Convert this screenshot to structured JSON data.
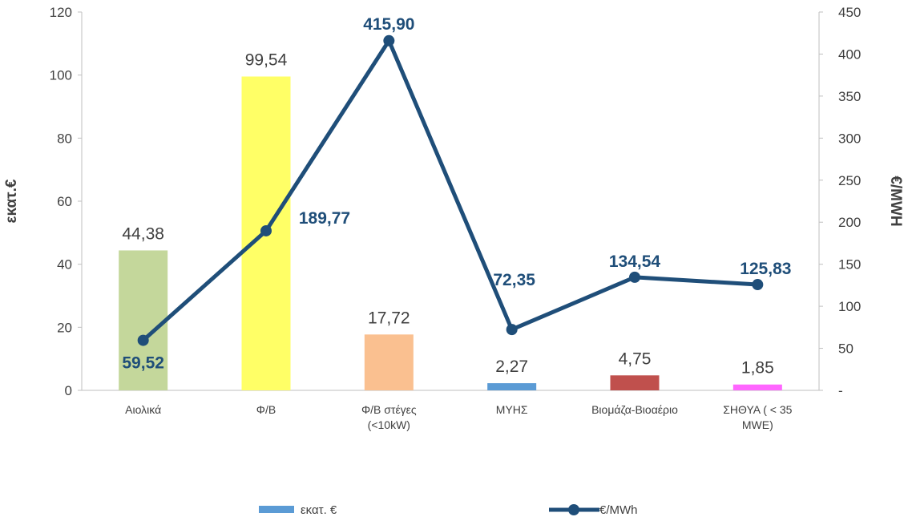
{
  "chart_data": {
    "type": "bar+line",
    "categories": [
      [
        "Αιολικά"
      ],
      [
        "Φ/Β"
      ],
      [
        "Φ/Β στέγες",
        "(<10kW)"
      ],
      [
        "ΜΥΗΣ"
      ],
      [
        "Βιομάζα-Βιοαέριο"
      ],
      [
        "ΣΗΘΥΑ ( < 35",
        "MWE)"
      ]
    ],
    "series": [
      {
        "name": "εκατ. €",
        "type": "bar",
        "axis": "left",
        "values": [
          44.38,
          99.54,
          17.72,
          2.27,
          4.75,
          1.85
        ],
        "labels": [
          "44,38",
          "99,54",
          "17,72",
          "2,27",
          "4,75",
          "1,85"
        ],
        "colors": [
          "#c4d79b",
          "#ffff66",
          "#fac090",
          "#5b9bd5",
          "#c0504d",
          "#ff66ff"
        ],
        "legend_color": "#5b9bd5"
      },
      {
        "name": "€/MWh",
        "type": "line",
        "axis": "right",
        "values": [
          59.52,
          189.77,
          415.9,
          72.35,
          134.54,
          125.83
        ],
        "labels": [
          "59,52",
          "189,77",
          "415,90",
          "72,35",
          "134,54",
          "125,83"
        ],
        "color": "#1f4e79"
      }
    ],
    "y_left": {
      "label": "εκατ.€",
      "min": 0,
      "max": 120,
      "ticks": [
        "0",
        "20",
        "40",
        "60",
        "80",
        "100",
        "120"
      ]
    },
    "y_right": {
      "label": "€/MWH",
      "min": 0,
      "max": 450,
      "ticks": [
        "-",
        "50",
        "100",
        "150",
        "200",
        "250",
        "300",
        "350",
        "400",
        "450"
      ]
    },
    "grid": false,
    "legend": "bottom"
  }
}
